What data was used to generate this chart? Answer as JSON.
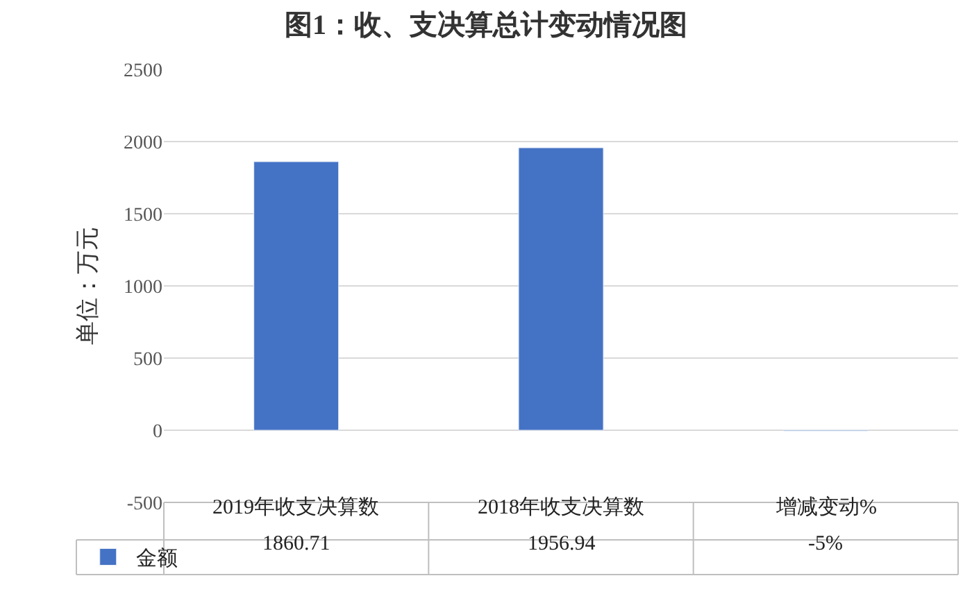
{
  "chart_data": {
    "type": "bar",
    "title": "图1：收、支决算总计变动情况图",
    "ylabel": "单位：万元",
    "categories": [
      "2019年收支决算数",
      "2018年收支决算数",
      "增减变动%"
    ],
    "series": [
      {
        "name": "金额",
        "color": "#4472c4",
        "values": [
          1860.71,
          1956.94,
          -5
        ],
        "value_labels": [
          "1860.71",
          "1956.94",
          "-5%"
        ]
      }
    ],
    "ylim": [
      -500,
      2500
    ],
    "yticks": [
      -500,
      0,
      500,
      1000,
      1500,
      2000,
      2500
    ],
    "grid": "y",
    "legend": "bottom left"
  }
}
